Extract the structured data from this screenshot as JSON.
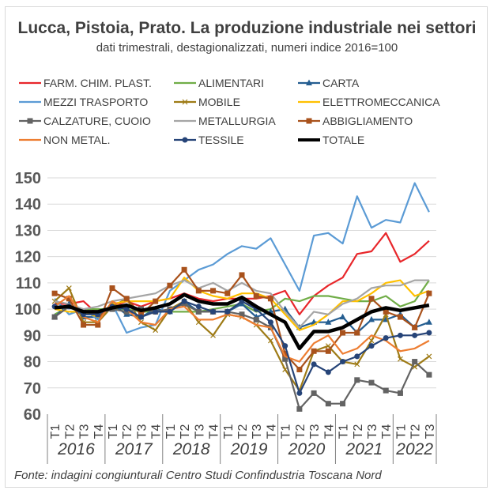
{
  "title": "Lucca, Pistoia, Prato. La produzione industriale nei settori",
  "subtitle": "dati trimestrali, destagionalizzati, numeri indice 2016=100",
  "source": "Fonte: indagini congiunturali Centro Studi Confindustria Toscana Nord",
  "chart_data": {
    "type": "line",
    "title": "Lucca, Pistoia, Prato. La produzione industriale nei settori",
    "subtitle": "dati trimestrali, destagionalizzati, numeri indice 2016=100",
    "xlabel": "",
    "ylabel": "",
    "ylim": [
      60,
      150
    ],
    "yticks": [
      60,
      70,
      80,
      90,
      100,
      110,
      120,
      130,
      140,
      150
    ],
    "grid": true,
    "legend_position": "top",
    "years": [
      "2016",
      "2017",
      "2018",
      "2019",
      "2020",
      "2021",
      "2022"
    ],
    "year_quarters": [
      4,
      4,
      4,
      4,
      4,
      4,
      3
    ],
    "x": [
      "T1",
      "T2",
      "T3",
      "T4",
      "T1",
      "T2",
      "T3",
      "T4",
      "T1",
      "T2",
      "T3",
      "T4",
      "T1",
      "T2",
      "T3",
      "T4",
      "T1",
      "T2",
      "T3",
      "T4",
      "T1",
      "T2",
      "T3",
      "T4",
      "T1",
      "T2",
      "T3"
    ],
    "series": [
      {
        "name": "FARM. CHIM. PLAST.",
        "color": "#e8262a",
        "marker": "none",
        "width": 2.2,
        "values": [
          102,
          102,
          103,
          98,
          101,
          103,
          101,
          103,
          104,
          106,
          104,
          103,
          104,
          104,
          104,
          105,
          107,
          98,
          105,
          109,
          112,
          121,
          122,
          129,
          118,
          121,
          126
        ]
      },
      {
        "name": "ALIMENTARI",
        "color": "#70ad47",
        "marker": "none",
        "width": 2.2,
        "values": [
          98,
          101,
          100,
          100,
          100,
          100,
          99,
          99,
          99,
          99,
          99,
          100,
          101,
          102,
          99,
          100,
          104,
          103,
          105,
          105,
          104,
          103,
          103,
          105,
          101,
          103,
          111
        ]
      },
      {
        "name": "CARTA",
        "color": "#255e91",
        "marker": "triangle",
        "width": 2.2,
        "values": [
          97,
          102,
          97,
          97,
          102,
          98,
          97,
          100,
          99,
          103,
          99,
          99,
          99,
          102,
          97,
          99,
          100,
          93,
          95,
          95,
          97,
          91,
          96,
          96,
          98,
          93,
          95
        ]
      },
      {
        "name": "MEZZI TRASPORTO",
        "color": "#5b9bd5",
        "marker": "none",
        "width": 2.2,
        "values": [
          104,
          98,
          100,
          96,
          102,
          91,
          93,
          94,
          107,
          111,
          115,
          117,
          121,
          124,
          123,
          127,
          117,
          107,
          128,
          129,
          125,
          143,
          131,
          134,
          133,
          148,
          137
        ]
      },
      {
        "name": "MOBILE",
        "color": "#9e7b16",
        "marker": "x",
        "width": 2.2,
        "values": [
          103,
          108,
          95,
          95,
          101,
          104,
          95,
          92,
          100,
          103,
          95,
          90,
          98,
          97,
          94,
          88,
          77,
          69,
          84,
          86,
          80,
          79,
          88,
          98,
          81,
          78,
          82
        ]
      },
      {
        "name": "ELETTROMECCANICA",
        "color": "#ffc000",
        "marker": "none",
        "width": 2.2,
        "values": [
          100,
          99,
          99,
          97,
          102,
          103,
          103,
          103,
          104,
          112,
          107,
          105,
          104,
          106,
          106,
          104,
          98,
          92,
          94,
          98,
          103,
          103,
          106,
          110,
          111,
          105,
          107
        ]
      },
      {
        "name": "CALZATURE, CUOIO",
        "color": "#636363",
        "marker": "square",
        "width": 2.2,
        "values": [
          97,
          101,
          99,
          98,
          100,
          99,
          100,
          99,
          100,
          102,
          99,
          99,
          99,
          98,
          96,
          93,
          81,
          62,
          68,
          64,
          64,
          73,
          72,
          69,
          68,
          80,
          75
        ]
      },
      {
        "name": "METALLURGIA",
        "color": "#a5a5a5",
        "marker": "none",
        "width": 2.2,
        "values": [
          103,
          102,
          100,
          101,
          103,
          104,
          105,
          106,
          109,
          111,
          108,
          110,
          107,
          110,
          107,
          106,
          99,
          93,
          99,
          98,
          102,
          104,
          108,
          109,
          109,
          111,
          111
        ]
      },
      {
        "name": "ABBIGLIAMENTO",
        "color": "#a9521c",
        "marker": "square",
        "width": 2.2,
        "values": [
          106,
          104,
          94,
          94,
          108,
          104,
          98,
          103,
          109,
          115,
          107,
          107,
          106,
          113,
          105,
          104,
          83,
          77,
          84,
          84,
          91,
          91,
          104,
          99,
          97,
          93,
          106
        ]
      },
      {
        "name": "NON METAL.",
        "color": "#ed7d31",
        "marker": "none",
        "width": 2.2,
        "values": [
          101,
          105,
          97,
          95,
          103,
          100,
          95,
          94,
          100,
          101,
          96,
          96,
          98,
          97,
          94,
          93,
          82,
          80,
          87,
          90,
          83,
          85,
          90,
          88,
          84,
          85,
          88
        ]
      },
      {
        "name": "TESSILE",
        "color": "#264478",
        "marker": "circle",
        "width": 2.2,
        "values": [
          101,
          101,
          98,
          98,
          101,
          100,
          97,
          99,
          99,
          103,
          101,
          99,
          99,
          103,
          100,
          95,
          86,
          68,
          79,
          76,
          80,
          82,
          86,
          89,
          90,
          90,
          91
        ]
      },
      {
        "name": "TOTALE",
        "color": "#000000",
        "marker": "none",
        "width": 4.5,
        "values": [
          100.5,
          101,
          99,
          99,
          100.5,
          101.5,
          99.5,
          100.5,
          102,
          105.5,
          103,
          102,
          102,
          104.5,
          101,
          98,
          95,
          85,
          91.5,
          91.5,
          93,
          96,
          99,
          100.5,
          99.5,
          100.5,
          101.5
        ]
      }
    ]
  }
}
